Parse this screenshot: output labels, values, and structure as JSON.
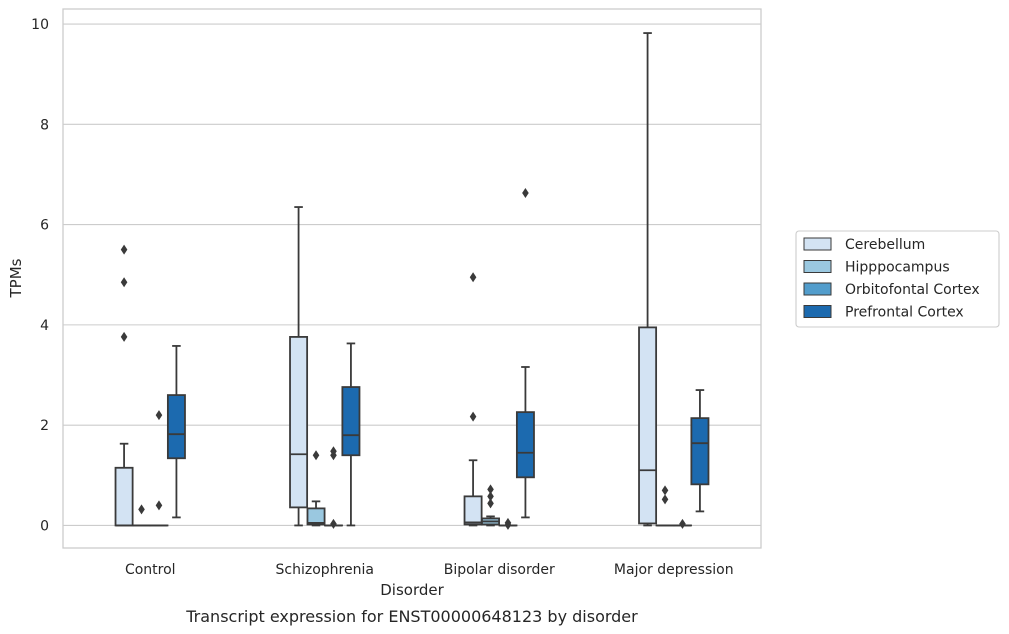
{
  "chart_data": {
    "type": "box",
    "title": "",
    "caption": "Transcript expression for ENST00000648123 by disorder",
    "xlabel": "Disorder",
    "ylabel": "TPMs",
    "ylim": [
      -0.45,
      10.3
    ],
    "yticks": [
      0,
      2,
      4,
      6,
      8,
      10
    ],
    "grid": "horizontal",
    "legend_position": "right",
    "categories": [
      "Control",
      "Schizophrenia",
      "Bipolar disorder",
      "Major depression"
    ],
    "series": [
      {
        "name": "Cerebellum",
        "color": "#d3e3f3",
        "boxes": [
          {
            "q1": 0,
            "median": 0,
            "q3": 1.15,
            "whislo": 0,
            "whishi": 1.63,
            "fliers": [
              3.76,
              4.85,
              5.5
            ]
          },
          {
            "q1": 0.36,
            "median": 1.42,
            "q3": 3.76,
            "whislo": 0,
            "whishi": 6.35,
            "fliers": []
          },
          {
            "q1": 0.02,
            "median": 0.06,
            "q3": 0.58,
            "whislo": 0,
            "whishi": 1.3,
            "fliers": [
              2.17,
              4.95
            ]
          },
          {
            "q1": 0.04,
            "median": 1.1,
            "q3": 3.95,
            "whislo": 0,
            "whishi": 9.82,
            "fliers": []
          }
        ]
      },
      {
        "name": "Hipppocampus",
        "color": "#9ac8e0",
        "boxes": [
          {
            "q1": 0,
            "median": 0,
            "q3": 0,
            "whislo": 0,
            "whishi": 0,
            "fliers": [
              0.32
            ]
          },
          {
            "q1": 0.02,
            "median": 0.05,
            "q3": 0.34,
            "whislo": 0,
            "whishi": 0.48,
            "fliers": [
              1.4
            ]
          },
          {
            "q1": 0.02,
            "median": 0.08,
            "q3": 0.14,
            "whislo": 0,
            "whishi": 0.18,
            "fliers": [
              0.44,
              0.58,
              0.72
            ]
          },
          {
            "q1": 0,
            "median": 0,
            "q3": 0,
            "whislo": 0,
            "whishi": 0,
            "fliers": [
              0.52,
              0.7
            ]
          }
        ]
      },
      {
        "name": "Orbitofontal Cortex",
        "color": "#529dcc",
        "boxes": [
          {
            "q1": 0,
            "median": 0,
            "q3": 0,
            "whislo": 0,
            "whishi": 0,
            "fliers": [
              0.4,
              2.2
            ]
          },
          {
            "q1": 0,
            "median": 0,
            "q3": 0,
            "whislo": 0,
            "whishi": 0,
            "fliers": [
              0.03,
              1.4,
              1.48
            ]
          },
          {
            "q1": 0,
            "median": 0,
            "q3": 0,
            "whislo": 0,
            "whishi": 0,
            "fliers": [
              0.01,
              0.05
            ]
          },
          {
            "q1": 0,
            "median": 0,
            "q3": 0,
            "whislo": 0,
            "whishi": 0,
            "fliers": [
              0.03
            ]
          }
        ]
      },
      {
        "name": "Prefrontal Cortex",
        "color": "#1c6aaf",
        "boxes": [
          {
            "q1": 1.34,
            "median": 1.82,
            "q3": 2.6,
            "whislo": 0.16,
            "whishi": 3.58,
            "fliers": []
          },
          {
            "q1": 1.4,
            "median": 1.8,
            "q3": 2.76,
            "whislo": 0,
            "whishi": 3.63,
            "fliers": []
          },
          {
            "q1": 0.96,
            "median": 1.45,
            "q3": 2.26,
            "whislo": 0.16,
            "whishi": 3.16,
            "fliers": [
              6.63
            ]
          },
          {
            "q1": 0.82,
            "median": 1.64,
            "q3": 2.14,
            "whislo": 0.28,
            "whishi": 2.7,
            "fliers": []
          }
        ]
      }
    ]
  }
}
